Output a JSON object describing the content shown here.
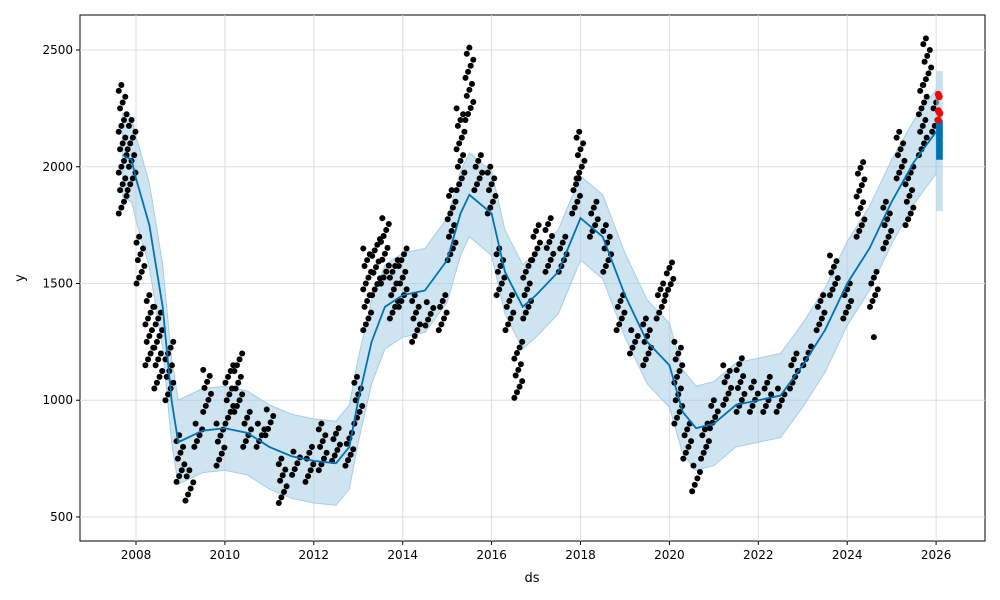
{
  "chart_data": {
    "type": "line",
    "title": "",
    "xlabel": "ds",
    "ylabel": "y",
    "xlim": [
      2006.74,
      2027.1
    ],
    "ylim": [
      397,
      2650
    ],
    "grid": true,
    "x_ticks": [
      "2008",
      "2010",
      "2012",
      "2014",
      "2016",
      "2018",
      "2020",
      "2022",
      "2024",
      "2026"
    ],
    "x_tick_values": [
      2008,
      2010,
      2012,
      2014,
      2016,
      2018,
      2020,
      2022,
      2024,
      2026
    ],
    "y_ticks": [
      "500",
      "1000",
      "1500",
      "2000",
      "2500"
    ],
    "y_tick_values": [
      500,
      1000,
      1500,
      2000,
      2500
    ],
    "colors": {
      "forecast": "#0072B2",
      "band": "#a6cde6",
      "observed": "#000000",
      "highlight": "#ff0000"
    },
    "band_halfwidth": 180,
    "yhat": [
      [
        2007.7,
        2050
      ],
      [
        2007.9,
        2030
      ],
      [
        2008.0,
        1950
      ],
      [
        2008.3,
        1750
      ],
      [
        2008.6,
        1400
      ],
      [
        2008.8,
        1000
      ],
      [
        2008.95,
        820
      ],
      [
        2009.5,
        870
      ],
      [
        2010.0,
        880
      ],
      [
        2010.5,
        860
      ],
      [
        2011.0,
        800
      ],
      [
        2011.5,
        760
      ],
      [
        2012.0,
        740
      ],
      [
        2012.5,
        730
      ],
      [
        2012.8,
        800
      ],
      [
        2013.0,
        1000
      ],
      [
        2013.3,
        1250
      ],
      [
        2013.6,
        1400
      ],
      [
        2014.0,
        1450
      ],
      [
        2014.5,
        1470
      ],
      [
        2015.0,
        1600
      ],
      [
        2015.3,
        1800
      ],
      [
        2015.5,
        1880
      ],
      [
        2016.0,
        1800
      ],
      [
        2016.3,
        1550
      ],
      [
        2016.7,
        1400
      ],
      [
        2017.0,
        1450
      ],
      [
        2017.5,
        1550
      ],
      [
        2018.0,
        1780
      ],
      [
        2018.5,
        1700
      ],
      [
        2019.0,
        1450
      ],
      [
        2019.5,
        1250
      ],
      [
        2020.0,
        1150
      ],
      [
        2020.3,
        950
      ],
      [
        2020.6,
        880
      ],
      [
        2021.0,
        900
      ],
      [
        2021.5,
        980
      ],
      [
        2022.0,
        1000
      ],
      [
        2022.5,
        1020
      ],
      [
        2023.0,
        1150
      ],
      [
        2023.5,
        1300
      ],
      [
        2024.0,
        1500
      ],
      [
        2024.5,
        1650
      ],
      [
        2025.0,
        1850
      ],
      [
        2025.5,
        2020
      ],
      [
        2026.0,
        2150
      ]
    ],
    "observed_ranges": [
      [
        2007.7,
        1800,
        2350
      ],
      [
        2007.9,
        1900,
        2200
      ],
      [
        2008.1,
        1500,
        1700
      ],
      [
        2008.3,
        1150,
        1450
      ],
      [
        2008.5,
        1050,
        1400
      ],
      [
        2008.75,
        1000,
        1250
      ],
      [
        2009.0,
        650,
        850
      ],
      [
        2009.2,
        570,
        700
      ],
      [
        2009.4,
        800,
        900
      ],
      [
        2009.6,
        950,
        1130
      ],
      [
        2009.9,
        720,
        900
      ],
      [
        2010.1,
        900,
        1150
      ],
      [
        2010.3,
        950,
        1200
      ],
      [
        2010.5,
        800,
        950
      ],
      [
        2010.8,
        800,
        900
      ],
      [
        2011.0,
        850,
        960
      ],
      [
        2011.3,
        560,
        750
      ],
      [
        2011.6,
        680,
        780
      ],
      [
        2011.9,
        650,
        800
      ],
      [
        2012.2,
        700,
        900
      ],
      [
        2012.5,
        740,
        880
      ],
      [
        2012.8,
        720,
        860
      ],
      [
        2013.0,
        900,
        1100
      ],
      [
        2013.2,
        1300,
        1650
      ],
      [
        2013.4,
        1450,
        1690
      ],
      [
        2013.6,
        1500,
        1780
      ],
      [
        2013.8,
        1350,
        1600
      ],
      [
        2014.0,
        1400,
        1650
      ],
      [
        2014.3,
        1250,
        1450
      ],
      [
        2014.6,
        1320,
        1420
      ],
      [
        2014.9,
        1300,
        1450
      ],
      [
        2015.1,
        1600,
        1900
      ],
      [
        2015.3,
        1900,
        2250
      ],
      [
        2015.5,
        2200,
        2510
      ],
      [
        2015.7,
        1900,
        2050
      ],
      [
        2016.0,
        1800,
        2000
      ],
      [
        2016.2,
        1450,
        1650
      ],
      [
        2016.4,
        1300,
        1450
      ],
      [
        2016.6,
        1010,
        1250
      ],
      [
        2016.8,
        1350,
        1600
      ],
      [
        2017.0,
        1600,
        1750
      ],
      [
        2017.3,
        1550,
        1780
      ],
      [
        2017.6,
        1550,
        1700
      ],
      [
        2017.9,
        1800,
        1950
      ],
      [
        2018.0,
        1950,
        2150
      ],
      [
        2018.3,
        1700,
        1850
      ],
      [
        2018.6,
        1550,
        1750
      ],
      [
        2018.9,
        1300,
        1450
      ],
      [
        2019.2,
        1200,
        1300
      ],
      [
        2019.5,
        1150,
        1350
      ],
      [
        2019.8,
        1350,
        1500
      ],
      [
        2020.0,
        1450,
        1590
      ],
      [
        2020.2,
        900,
        1250
      ],
      [
        2020.4,
        750,
        900
      ],
      [
        2020.6,
        610,
        720
      ],
      [
        2020.8,
        750,
        900
      ],
      [
        2021.0,
        880,
        1000
      ],
      [
        2021.3,
        980,
        1150
      ],
      [
        2021.6,
        950,
        1180
      ],
      [
        2021.9,
        950,
        1080
      ],
      [
        2022.2,
        950,
        1100
      ],
      [
        2022.5,
        950,
        1050
      ],
      [
        2022.8,
        1050,
        1200
      ],
      [
        2023.1,
        1150,
        1230
      ],
      [
        2023.4,
        1300,
        1450
      ],
      [
        2023.7,
        1450,
        1620
      ],
      [
        2024.0,
        1350,
        1500
      ],
      [
        2024.3,
        1700,
        2020
      ],
      [
        2024.6,
        1400,
        1550
      ],
      [
        2024.9,
        1650,
        1850
      ],
      [
        2025.2,
        1950,
        2150
      ],
      [
        2025.4,
        1750,
        2000
      ],
      [
        2025.7,
        2050,
        2350
      ],
      [
        2025.8,
        2350,
        2550
      ],
      [
        2026.0,
        2150,
        2300
      ]
    ],
    "observed_outliers": [
      [
        2024.6,
        1270
      ]
    ],
    "highlight_points": [
      [
        2026.05,
        2310
      ],
      [
        2026.07,
        2300
      ],
      [
        2026.05,
        2240
      ],
      [
        2026.08,
        2230
      ],
      [
        2026.05,
        2200
      ]
    ],
    "forecast_block": {
      "x": [
        2026.0,
        2026.15
      ],
      "y": [
        2030,
        2200
      ],
      "band": [
        1810,
        2410
      ]
    }
  }
}
